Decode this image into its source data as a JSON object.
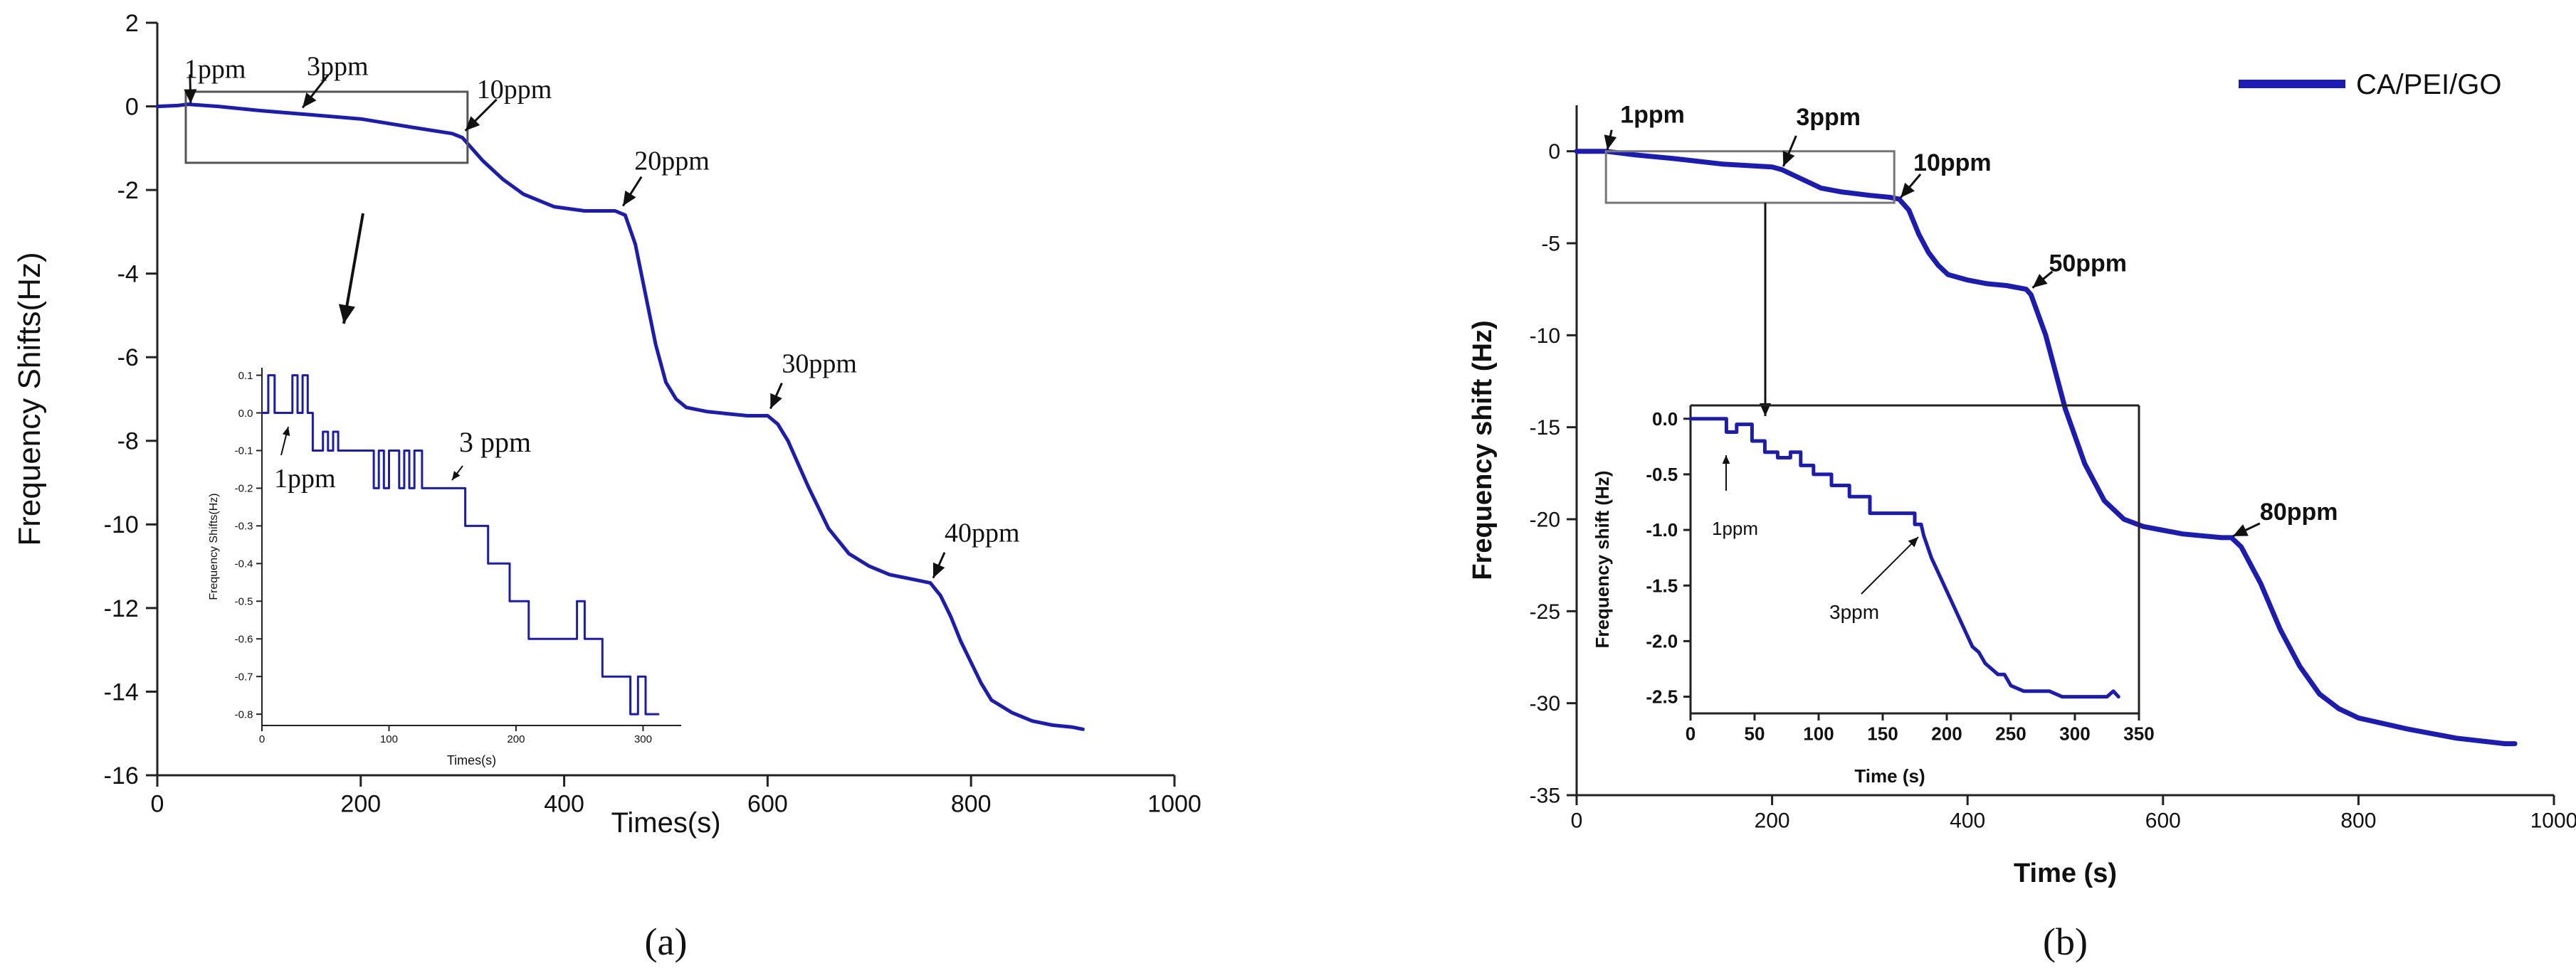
{
  "chart_data": [
    {
      "panel": "a",
      "type": "line",
      "caption": "(a)",
      "xlabel": "Times(s)",
      "ylabel": "Frequency Shifts(Hz)",
      "xlim": [
        0,
        1000
      ],
      "ylim": [
        -16,
        2
      ],
      "xticks": [
        0,
        200,
        400,
        600,
        800,
        1000
      ],
      "yticks": [
        2,
        0,
        -2,
        -4,
        -6,
        -8,
        -10,
        -12,
        -14,
        -16
      ],
      "color": "#1b1bb5",
      "series": [
        {
          "name": "main",
          "x": [
            0,
            20,
            30,
            60,
            100,
            150,
            200,
            250,
            290,
            300,
            320,
            340,
            360,
            390,
            420,
            450,
            460,
            470,
            480,
            490,
            500,
            510,
            520,
            540,
            560,
            580,
            600,
            610,
            620,
            640,
            660,
            680,
            700,
            720,
            740,
            760,
            770,
            780,
            790,
            800,
            810,
            820,
            840,
            860,
            880,
            900,
            910
          ],
          "y": [
            0,
            0.02,
            0.05,
            0,
            -0.1,
            -0.2,
            -0.3,
            -0.5,
            -0.65,
            -0.75,
            -1.3,
            -1.75,
            -2.1,
            -2.4,
            -2.5,
            -2.5,
            -2.6,
            -3.3,
            -4.5,
            -5.7,
            -6.6,
            -7.0,
            -7.2,
            -7.3,
            -7.35,
            -7.4,
            -7.4,
            -7.6,
            -8.0,
            -9.1,
            -10.1,
            -10.7,
            -11.0,
            -11.2,
            -11.3,
            -11.4,
            -11.7,
            -12.2,
            -12.8,
            -13.3,
            -13.8,
            -14.2,
            -14.5,
            -14.7,
            -14.8,
            -14.85,
            -14.9
          ]
        }
      ],
      "annotations": [
        {
          "text": "1ppm",
          "x": 30,
          "y": 0
        },
        {
          "text": "3ppm",
          "x": 140,
          "y": -0.1
        },
        {
          "text": "10ppm",
          "x": 300,
          "y": -0.65
        },
        {
          "text": "20ppm",
          "x": 455,
          "y": -2.45
        },
        {
          "text": "30ppm",
          "x": 600,
          "y": -7.3
        },
        {
          "text": "40ppm",
          "x": 760,
          "y": -11.35
        }
      ],
      "inset": {
        "type": "line",
        "xlabel": "Times(s)",
        "ylabel": "Frequency Shifts(Hz)",
        "xlim": [
          0,
          330
        ],
        "ylim": [
          -0.83,
          0.12
        ],
        "xticks": [
          0,
          100,
          200,
          300
        ],
        "yticks": [
          0.1,
          0.0,
          -0.1,
          -0.2,
          -0.3,
          -0.4,
          -0.5,
          -0.6,
          -0.7,
          -0.8
        ],
        "x": [
          0,
          5,
          5,
          10,
          10,
          24,
          24,
          28,
          28,
          32,
          32,
          36,
          36,
          40,
          40,
          48,
          48,
          52,
          52,
          56,
          56,
          60,
          60,
          88,
          88,
          92,
          92,
          96,
          96,
          100,
          100,
          108,
          108,
          112,
          112,
          116,
          116,
          120,
          120,
          126,
          126,
          130,
          130,
          160,
          160,
          178,
          178,
          195,
          195,
          210,
          210,
          248,
          248,
          254,
          254,
          268,
          268,
          290,
          290,
          296,
          296,
          302,
          302,
          312
        ],
        "y": [
          0,
          0,
          0.1,
          0.1,
          0,
          0,
          0.1,
          0.1,
          0,
          0,
          0.1,
          0.1,
          0,
          0,
          -0.1,
          -0.1,
          -0.05,
          -0.05,
          -0.1,
          -0.1,
          -0.05,
          -0.05,
          -0.1,
          -0.1,
          -0.2,
          -0.2,
          -0.1,
          -0.1,
          -0.2,
          -0.2,
          -0.1,
          -0.1,
          -0.2,
          -0.2,
          -0.1,
          -0.1,
          -0.2,
          -0.2,
          -0.1,
          -0.1,
          -0.2,
          -0.2,
          -0.2,
          -0.2,
          -0.3,
          -0.3,
          -0.4,
          -0.4,
          -0.5,
          -0.5,
          -0.6,
          -0.6,
          -0.5,
          -0.5,
          -0.6,
          -0.6,
          -0.7,
          -0.7,
          -0.8,
          -0.8,
          -0.7,
          -0.7,
          -0.8,
          -0.8
        ],
        "annotations": [
          {
            "text": "1ppm",
            "x": 18,
            "y": -0.05
          },
          {
            "text": "3 ppm",
            "x": 160,
            "y": -0.2
          }
        ]
      }
    },
    {
      "panel": "b",
      "type": "line",
      "caption": "(b)",
      "xlabel": "Time (s)",
      "ylabel": "Frequency shift (Hz)",
      "xlim": [
        0,
        1000
      ],
      "ylim": [
        -35,
        2.5
      ],
      "xticks": [
        0,
        200,
        400,
        600,
        800,
        1000
      ],
      "yticks": [
        0,
        -5,
        -10,
        -15,
        -20,
        -25,
        -30,
        -35
      ],
      "legend": {
        "label": "CA/PEI/GO",
        "position": "top-right"
      },
      "color": "#1b1bb5",
      "series": [
        {
          "name": "CA/PEI/GO",
          "x": [
            0,
            30,
            60,
            100,
            150,
            200,
            210,
            230,
            250,
            270,
            300,
            320,
            330,
            340,
            350,
            360,
            370,
            380,
            400,
            420,
            440,
            460,
            465,
            480,
            500,
            520,
            540,
            560,
            580,
            600,
            620,
            640,
            660,
            670,
            680,
            700,
            720,
            740,
            760,
            780,
            800,
            850,
            900,
            950,
            960
          ],
          "y": [
            0,
            0,
            -0.2,
            -0.4,
            -0.7,
            -0.85,
            -1.0,
            -1.5,
            -2.0,
            -2.2,
            -2.4,
            -2.5,
            -2.6,
            -3.2,
            -4.5,
            -5.5,
            -6.2,
            -6.7,
            -7.0,
            -7.2,
            -7.3,
            -7.5,
            -7.8,
            -10.0,
            -14.0,
            -17.0,
            -19.0,
            -20.0,
            -20.4,
            -20.6,
            -20.8,
            -20.9,
            -21.0,
            -21.0,
            -21.5,
            -23.5,
            -26.0,
            -28.0,
            -29.5,
            -30.3,
            -30.8,
            -31.4,
            -31.9,
            -32.2,
            -32.2
          ]
        }
      ],
      "annotations": [
        {
          "text": "1ppm",
          "x": 30,
          "y": 0
        },
        {
          "text": "3ppm",
          "x": 210,
          "y": -0.9
        },
        {
          "text": "10ppm",
          "x": 330,
          "y": -2.6
        },
        {
          "text": "50ppm",
          "x": 465,
          "y": -7.5
        },
        {
          "text": "80ppm",
          "x": 670,
          "y": -21.0
        }
      ],
      "inset": {
        "type": "line",
        "xlabel": "Time (s)",
        "ylabel": "Frequency shift (Hz)",
        "xlim": [
          0,
          350
        ],
        "ylim": [
          -2.65,
          0.12
        ],
        "xticks": [
          0,
          50,
          100,
          150,
          200,
          250,
          300,
          350
        ],
        "yticks": [
          0.0,
          -0.5,
          -1.0,
          -1.5,
          -2.0,
          -2.5
        ],
        "x": [
          0,
          28,
          28,
          36,
          36,
          48,
          48,
          58,
          58,
          68,
          68,
          78,
          78,
          86,
          86,
          96,
          96,
          110,
          110,
          124,
          124,
          140,
          140,
          175,
          175,
          180,
          182,
          185,
          188,
          192,
          196,
          200,
          204,
          208,
          212,
          216,
          220,
          225,
          230,
          235,
          240,
          245,
          250,
          260,
          270,
          280,
          290,
          300,
          310,
          320,
          325,
          330,
          334
        ],
        "y": [
          0,
          0,
          -0.12,
          -0.12,
          -0.05,
          -0.05,
          -0.2,
          -0.2,
          -0.3,
          -0.3,
          -0.35,
          -0.35,
          -0.3,
          -0.3,
          -0.42,
          -0.42,
          -0.5,
          -0.5,
          -0.6,
          -0.6,
          -0.7,
          -0.7,
          -0.85,
          -0.85,
          -0.95,
          -0.95,
          -1.05,
          -1.15,
          -1.25,
          -1.35,
          -1.45,
          -1.55,
          -1.65,
          -1.75,
          -1.85,
          -1.95,
          -2.05,
          -2.1,
          -2.2,
          -2.25,
          -2.3,
          -2.3,
          -2.4,
          -2.45,
          -2.45,
          -2.45,
          -2.5,
          -2.5,
          -2.5,
          -2.5,
          -2.5,
          -2.45,
          -2.5
        ],
        "annotations": [
          {
            "text": "1ppm",
            "x": 38,
            "y": -0.3
          },
          {
            "text": "3ppm",
            "x": 180,
            "y": -1.1
          }
        ]
      }
    }
  ]
}
